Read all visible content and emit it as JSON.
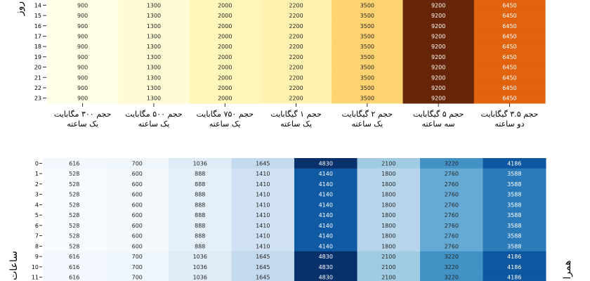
{
  "chart_data": [
    {
      "type": "heatmap",
      "colormap": "YlOrBr",
      "ylabel": "روز",
      "categories": [
        [
          "حجم ۳۰۰ مگابایت",
          "یک ساعته"
        ],
        [
          "حجم ۵۰۰ مگابایت",
          "یک ساعته"
        ],
        [
          "حجم ۷۵۰ مگابایت",
          "یک ساعته"
        ],
        [
          "حجم ۱ گیگابایت",
          "یک ساعته"
        ],
        [
          "حجم ۲ گیگابایت",
          "یک ساعته"
        ],
        [
          "حجم ۵ گیگابایت",
          "سه ساعته"
        ],
        [
          "حجم ۳.۵ گیگابایت",
          "دو ساعته"
        ]
      ],
      "rows": [
        14,
        15,
        16,
        17,
        18,
        19,
        20,
        21,
        22,
        23
      ],
      "values": [
        [
          900,
          1300,
          2000,
          2200,
          3500,
          9200,
          6450
        ],
        [
          900,
          1300,
          2000,
          2200,
          3500,
          9200,
          6450
        ],
        [
          900,
          1300,
          2000,
          2200,
          3500,
          9200,
          6450
        ],
        [
          900,
          1300,
          2000,
          2200,
          3500,
          9200,
          6450
        ],
        [
          900,
          1300,
          2000,
          2200,
          3500,
          9200,
          6450
        ],
        [
          900,
          1300,
          2000,
          2200,
          3500,
          9200,
          6450
        ],
        [
          900,
          1300,
          2000,
          2200,
          3500,
          9200,
          6450
        ],
        [
          900,
          1300,
          2000,
          2200,
          3500,
          9200,
          6450
        ],
        [
          900,
          1300,
          2000,
          2200,
          3500,
          9200,
          6450
        ],
        [
          900,
          1300,
          2000,
          2200,
          3500,
          9200,
          6450
        ]
      ]
    },
    {
      "type": "heatmap",
      "colormap": "Blues",
      "ylabel": "ساعات",
      "right_label": "همرا",
      "rows": [
        0,
        1,
        2,
        3,
        4,
        5,
        6,
        7,
        8,
        9,
        10,
        11
      ],
      "values": [
        [
          616,
          700,
          1036,
          1645,
          4830,
          2100,
          3220,
          4186
        ],
        [
          528,
          600,
          888,
          1410,
          4140,
          1800,
          2760,
          3588
        ],
        [
          528,
          600,
          888,
          1410,
          4140,
          1800,
          2760,
          3588
        ],
        [
          528,
          600,
          888,
          1410,
          4140,
          1800,
          2760,
          3588
        ],
        [
          528,
          600,
          888,
          1410,
          4140,
          1800,
          2760,
          3588
        ],
        [
          528,
          600,
          888,
          1410,
          4140,
          1800,
          2760,
          3588
        ],
        [
          528,
          600,
          888,
          1410,
          4140,
          1800,
          2760,
          3588
        ],
        [
          528,
          600,
          888,
          1410,
          4140,
          1800,
          2760,
          3588
        ],
        [
          528,
          600,
          888,
          1410,
          4140,
          1800,
          2760,
          3588
        ],
        [
          616,
          700,
          1036,
          1645,
          4830,
          2100,
          3220,
          4186
        ],
        [
          616,
          700,
          1036,
          1645,
          4830,
          2100,
          3220,
          4186
        ],
        [
          616,
          700,
          1036,
          1645,
          4830,
          2100,
          3220,
          4186
        ]
      ]
    }
  ]
}
